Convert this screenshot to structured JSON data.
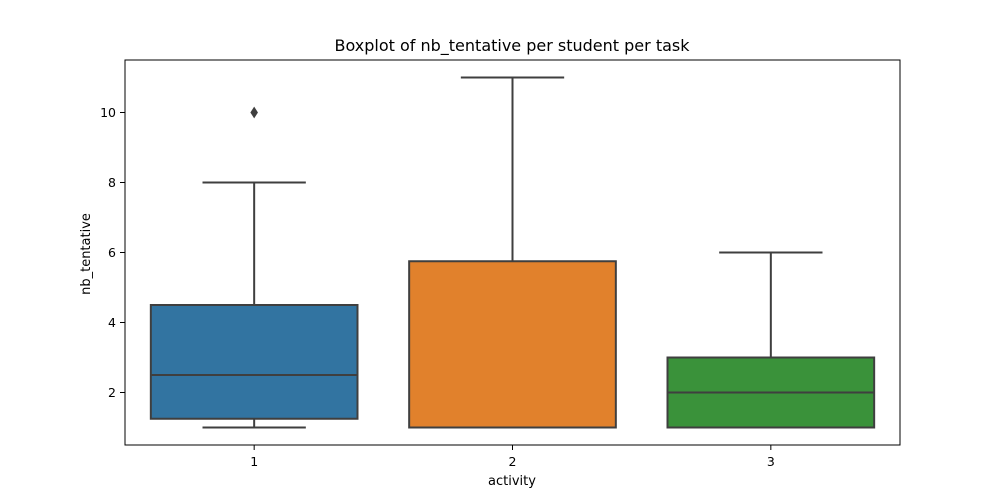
{
  "chart_data": {
    "type": "boxplot",
    "title": "Boxplot of nb_tentative per student per task",
    "xlabel": "activity",
    "ylabel": "nb_tentative",
    "categories": [
      "1",
      "2",
      "3"
    ],
    "ylim": [
      0.5,
      11.5
    ],
    "yticks": [
      2,
      4,
      6,
      8,
      10
    ],
    "ytick_labels": [
      "2",
      "4",
      "6",
      "8",
      "10"
    ],
    "grid": false,
    "legend": "none",
    "boxes": [
      {
        "category": "1",
        "color": "#3274a1",
        "whisker_low": 1,
        "q1": 1.25,
        "median": 2.5,
        "q3": 4.5,
        "whisker_high": 8,
        "outliers": [
          10
        ]
      },
      {
        "category": "2",
        "color": "#e1812c",
        "whisker_low": 1,
        "q1": 1,
        "median": 1,
        "q3": 5.75,
        "whisker_high": 11,
        "outliers": []
      },
      {
        "category": "3",
        "color": "#3a923a",
        "whisker_low": 1,
        "q1": 1,
        "median": 2,
        "q3": 3,
        "whisker_high": 6,
        "outliers": []
      }
    ],
    "line_color": "#3f3f3f"
  }
}
